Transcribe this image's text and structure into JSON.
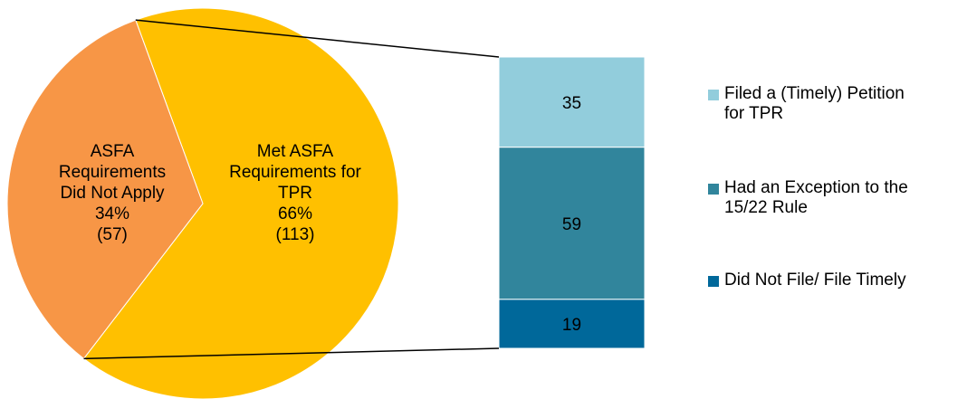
{
  "chart_data": {
    "type": "bar-of-pie",
    "pie": {
      "slices": [
        {
          "label": "Met ASFA Requirements for TPR",
          "label_lines": [
            "Met ASFA",
            "Requirements for",
            "TPR",
            "66%",
            "(113)"
          ],
          "percent": 66,
          "count": 113,
          "color": "#FFC000"
        },
        {
          "label": "ASFA Requirements Did Not Apply",
          "label_lines": [
            "ASFA",
            "Requirements",
            "Did Not Apply",
            "34%",
            "(57)"
          ],
          "percent": 34,
          "count": 57,
          "color": "#F79646"
        }
      ]
    },
    "bar": {
      "segments": [
        {
          "name": "Filed a (Timely) Petition for TPR",
          "legend_lines": [
            "Filed a (Timely) Petition",
            "for TPR"
          ],
          "value": 35,
          "label": "35",
          "color": "#92CDDC"
        },
        {
          "name": "Had an Exception to the 15/22 Rule",
          "legend_lines": [
            "Had an Exception to the",
            "15/22 Rule"
          ],
          "value": 59,
          "label": "59",
          "color": "#31859C"
        },
        {
          "name": "Did Not File/ File Timely",
          "legend_lines": [
            "Did Not File/ File Timely"
          ],
          "value": 19,
          "label": "19",
          "color": "#00689A"
        }
      ]
    },
    "connector_color": "#000000"
  }
}
